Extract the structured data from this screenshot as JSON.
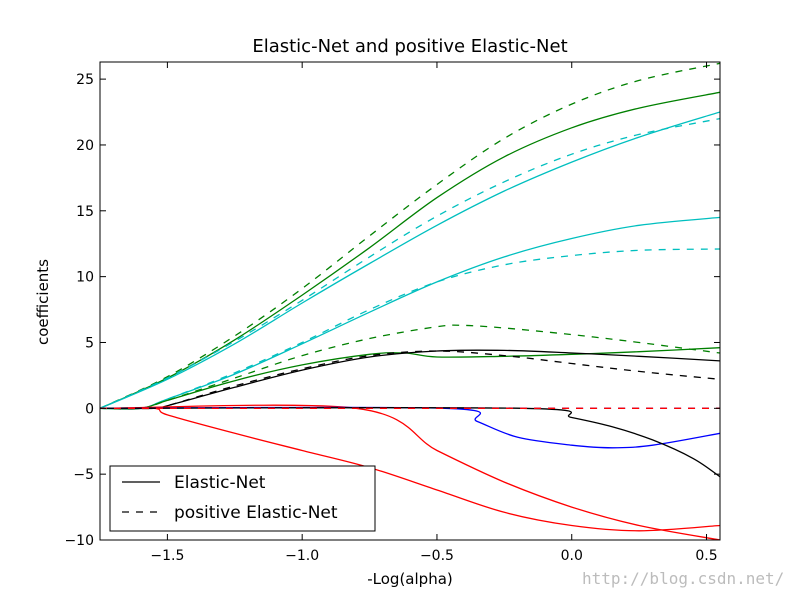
{
  "chart_data": {
    "type": "line",
    "title": "Elastic-Net and positive Elastic-Net",
    "xlabel": "-Log(alpha)",
    "ylabel": "coefficients",
    "xlim": [
      -1.75,
      0.55
    ],
    "ylim": [
      -10,
      26.3
    ],
    "x_ticks": [
      -1.5,
      -1.0,
      -0.5,
      0.0,
      0.5
    ],
    "x_tick_labels": [
      "−1.5",
      "−1.0",
      "−0.5",
      "0.0",
      "0.5"
    ],
    "y_ticks": [
      -10,
      -5,
      0,
      5,
      10,
      15,
      20,
      25
    ],
    "y_tick_labels": [
      "−10",
      "−5",
      "0",
      "5",
      "10",
      "15",
      "20",
      "25"
    ],
    "grid": false,
    "legend": {
      "placement": "lower-left",
      "entries": [
        {
          "label": "Elastic-Net",
          "style": "solid"
        },
        {
          "label": "positive Elastic-Net",
          "style": "dashed"
        }
      ]
    },
    "series": [
      {
        "color": "#008000",
        "style": "solid",
        "points": [
          [
            -1.75,
            0
          ],
          [
            -1.5,
            2.3
          ],
          [
            -1.25,
            5.2
          ],
          [
            -1.0,
            8.6
          ],
          [
            -0.75,
            12.2
          ],
          [
            -0.5,
            16.0
          ],
          [
            -0.25,
            19.1
          ],
          [
            0.0,
            21.3
          ],
          [
            0.25,
            22.8
          ],
          [
            0.55,
            24.0
          ]
        ]
      },
      {
        "color": "#008000",
        "style": "dashed",
        "points": [
          [
            -1.75,
            0
          ],
          [
            -1.5,
            2.4
          ],
          [
            -1.25,
            5.5
          ],
          [
            -1.0,
            9.1
          ],
          [
            -0.75,
            13.1
          ],
          [
            -0.5,
            17.0
          ],
          [
            -0.25,
            20.5
          ],
          [
            0.0,
            23.1
          ],
          [
            0.25,
            24.9
          ],
          [
            0.55,
            26.2
          ]
        ]
      },
      {
        "color": "#00bfbf",
        "style": "solid",
        "points": [
          [
            -1.75,
            0
          ],
          [
            -1.5,
            2.2
          ],
          [
            -1.25,
            4.9
          ],
          [
            -1.0,
            8.0
          ],
          [
            -0.75,
            11.0
          ],
          [
            -0.5,
            13.9
          ],
          [
            -0.25,
            16.5
          ],
          [
            0.0,
            18.7
          ],
          [
            0.25,
            20.6
          ],
          [
            0.55,
            22.5
          ]
        ]
      },
      {
        "color": "#00bfbf",
        "style": "dashed",
        "points": [
          [
            -1.75,
            0
          ],
          [
            -1.5,
            2.3
          ],
          [
            -1.25,
            5.1
          ],
          [
            -1.0,
            8.2
          ],
          [
            -0.75,
            11.5
          ],
          [
            -0.5,
            14.6
          ],
          [
            -0.25,
            17.2
          ],
          [
            0.0,
            19.3
          ],
          [
            0.25,
            20.8
          ],
          [
            0.55,
            22.0
          ]
        ]
      },
      {
        "color": "#00bfbf",
        "style": "solid",
        "points": [
          [
            -1.75,
            0
          ],
          [
            -1.6,
            0
          ],
          [
            -1.5,
            0.7
          ],
          [
            -1.25,
            2.6
          ],
          [
            -1.0,
            4.9
          ],
          [
            -0.75,
            7.3
          ],
          [
            -0.5,
            9.6
          ],
          [
            -0.25,
            11.5
          ],
          [
            0.0,
            12.9
          ],
          [
            0.25,
            13.9
          ],
          [
            0.55,
            14.5
          ]
        ]
      },
      {
        "color": "#00bfbf",
        "style": "dashed",
        "points": [
          [
            -1.75,
            0
          ],
          [
            -1.6,
            0
          ],
          [
            -1.5,
            0.7
          ],
          [
            -1.25,
            2.7
          ],
          [
            -1.0,
            5.0
          ],
          [
            -0.75,
            7.5
          ],
          [
            -0.5,
            9.6
          ],
          [
            -0.25,
            10.9
          ],
          [
            0.0,
            11.6
          ],
          [
            0.25,
            12.0
          ],
          [
            0.55,
            12.1
          ]
        ]
      },
      {
        "color": "#008000",
        "style": "dashed",
        "points": [
          [
            -1.75,
            0
          ],
          [
            -1.6,
            0
          ],
          [
            -1.5,
            0.6
          ],
          [
            -1.25,
            2.3
          ],
          [
            -1.0,
            4.0
          ],
          [
            -0.75,
            5.3
          ],
          [
            -0.5,
            6.2
          ],
          [
            -0.4,
            6.3
          ],
          [
            -0.25,
            6.1
          ],
          [
            0.0,
            5.6
          ],
          [
            0.25,
            5.0
          ],
          [
            0.55,
            4.2
          ]
        ]
      },
      {
        "color": "#008000",
        "style": "solid",
        "points": [
          [
            -1.75,
            0
          ],
          [
            -1.6,
            0
          ],
          [
            -1.5,
            0.6
          ],
          [
            -1.25,
            2.1
          ],
          [
            -1.0,
            3.3
          ],
          [
            -0.75,
            4.1
          ],
          [
            -0.62,
            4.2
          ],
          [
            -0.5,
            3.9
          ],
          [
            -0.25,
            3.95
          ],
          [
            0.0,
            4.1
          ],
          [
            0.25,
            4.3
          ],
          [
            0.55,
            4.6
          ]
        ]
      },
      {
        "color": "#000000",
        "style": "solid",
        "points": [
          [
            -1.75,
            0
          ],
          [
            -1.55,
            0
          ],
          [
            -1.5,
            0.2
          ],
          [
            -1.25,
            1.6
          ],
          [
            -1.0,
            2.9
          ],
          [
            -0.75,
            3.9
          ],
          [
            -0.5,
            4.35
          ],
          [
            -0.25,
            4.4
          ],
          [
            0.0,
            4.2
          ],
          [
            0.25,
            3.95
          ],
          [
            0.55,
            3.6
          ]
        ]
      },
      {
        "color": "#000000",
        "style": "dashed",
        "points": [
          [
            -1.75,
            0
          ],
          [
            -1.55,
            0
          ],
          [
            -1.5,
            0.2
          ],
          [
            -1.25,
            1.7
          ],
          [
            -1.0,
            3.0
          ],
          [
            -0.75,
            4.0
          ],
          [
            -0.5,
            4.35
          ],
          [
            -0.25,
            4.0
          ],
          [
            0.0,
            3.4
          ],
          [
            0.25,
            2.8
          ],
          [
            0.55,
            2.2
          ]
        ]
      },
      {
        "color": "#ff0000",
        "style": "solid",
        "points": [
          [
            -1.75,
            0
          ],
          [
            -1.55,
            0
          ],
          [
            -1.5,
            -0.5
          ],
          [
            -1.25,
            -1.9
          ],
          [
            -1.0,
            -3.2
          ],
          [
            -0.75,
            -4.5
          ],
          [
            -0.5,
            -6.2
          ],
          [
            -0.25,
            -7.9
          ],
          [
            0.0,
            -8.9
          ],
          [
            0.25,
            -9.3
          ],
          [
            0.55,
            -8.9
          ]
        ]
      },
      {
        "color": "#ff0000",
        "style": "solid",
        "points": [
          [
            -1.75,
            0
          ],
          [
            -0.8,
            0
          ],
          [
            -0.5,
            -3.2
          ],
          [
            -0.25,
            -5.6
          ],
          [
            0.0,
            -7.5
          ],
          [
            0.25,
            -8.9
          ],
          [
            0.55,
            -10.0
          ]
        ]
      },
      {
        "color": "#0000ff",
        "style": "solid",
        "points": [
          [
            -1.75,
            0
          ],
          [
            -0.47,
            0
          ],
          [
            -0.35,
            -1.0
          ],
          [
            -0.2,
            -2.2
          ],
          [
            0.0,
            -2.8
          ],
          [
            0.15,
            -3.0
          ],
          [
            0.3,
            -2.8
          ],
          [
            0.55,
            -1.9
          ]
        ]
      },
      {
        "color": "#000000",
        "style": "solid",
        "points": [
          [
            -1.75,
            0
          ],
          [
            -0.18,
            0
          ],
          [
            0.0,
            -0.7
          ],
          [
            0.15,
            -1.4
          ],
          [
            0.3,
            -2.4
          ],
          [
            0.45,
            -3.8
          ],
          [
            0.55,
            -5.2
          ]
        ]
      },
      {
        "color": "#0000ff",
        "style": "dashed",
        "points": [
          [
            -1.75,
            0
          ],
          [
            0.55,
            0
          ]
        ]
      },
      {
        "color": "#ff0000",
        "style": "dashed",
        "points": [
          [
            -1.75,
            0
          ],
          [
            0.55,
            0
          ]
        ]
      }
    ]
  },
  "watermark": "http://blog.csdn.net/"
}
